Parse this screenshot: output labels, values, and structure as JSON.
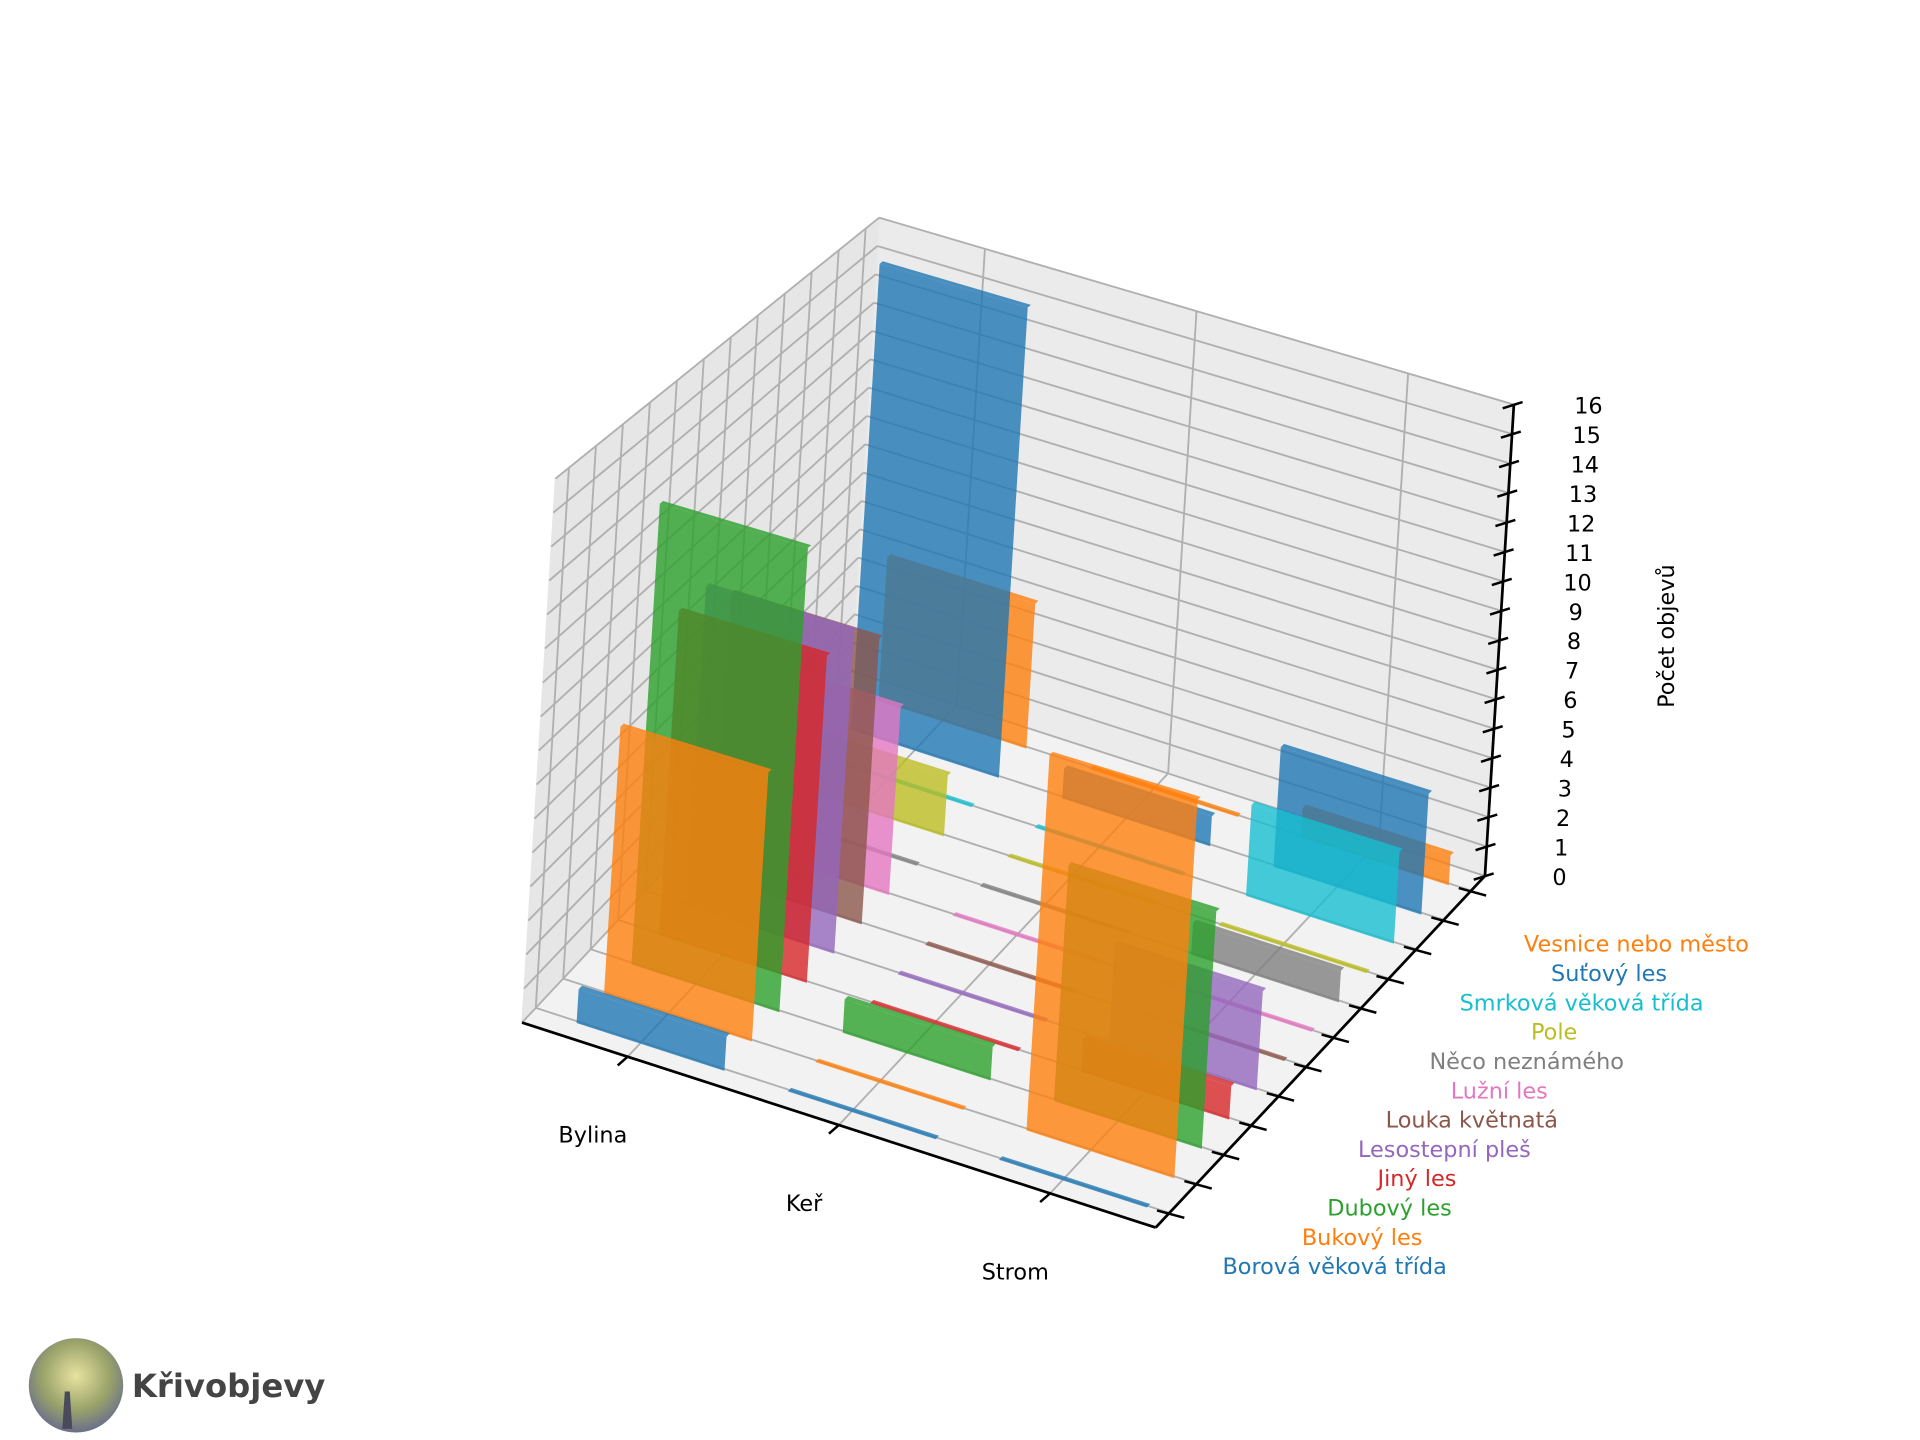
{
  "chart_data": {
    "type": "bar3d",
    "categories": [
      "Bylina",
      "Keř",
      "Strom"
    ],
    "zlabel": "Počet objevů",
    "zlim": [
      0,
      16
    ],
    "zticks": [
      0,
      1,
      2,
      3,
      4,
      5,
      6,
      7,
      8,
      9,
      10,
      11,
      12,
      13,
      14,
      15,
      16
    ],
    "series": [
      {
        "name": "Borová věková třída",
        "color": "#1f77b4",
        "values": [
          1,
          0,
          0
        ]
      },
      {
        "name": "Bukový les",
        "color": "#ff7f0e",
        "values": [
          8,
          0,
          11
        ]
      },
      {
        "name": "Dubový les",
        "color": "#2ca02c",
        "values": [
          14,
          1,
          7
        ]
      },
      {
        "name": "Jiný les",
        "color": "#d62728",
        "values": [
          10,
          0,
          1
        ]
      },
      {
        "name": "Lesostepní pleš",
        "color": "#9467bd",
        "values": [
          10,
          0,
          3
        ]
      },
      {
        "name": "Louka květnatá",
        "color": "#8c564b",
        "values": [
          9,
          0,
          0
        ]
      },
      {
        "name": "Lužní les",
        "color": "#e377c2",
        "values": [
          6,
          0,
          0
        ]
      },
      {
        "name": "Něco neznámého",
        "color": "#7f7f7f",
        "values": [
          0,
          0,
          1
        ]
      },
      {
        "name": "Pole",
        "color": "#bcbd22",
        "values": [
          2,
          0,
          0
        ]
      },
      {
        "name": "Smrková věková třída",
        "color": "#17becf",
        "values": [
          0,
          0,
          3
        ]
      },
      {
        "name": "Suťový les",
        "color": "#1f77b4",
        "values": [
          16,
          1,
          4
        ]
      },
      {
        "name": "Vesnice nebo město",
        "color": "#ff7f0e",
        "values": [
          5,
          0,
          1
        ]
      }
    ]
  },
  "brand": "Křivobjevy"
}
